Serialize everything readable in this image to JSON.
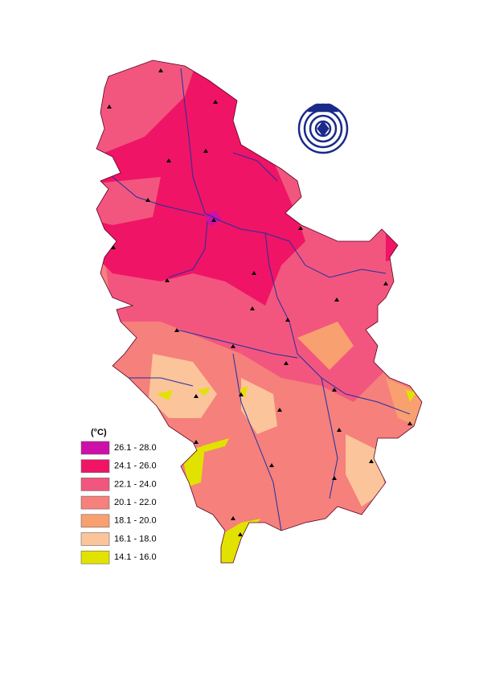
{
  "legend": {
    "title": "(°C)",
    "items": [
      {
        "label": "26.1 - 28.0",
        "color": "#cc10a8"
      },
      {
        "label": "24.1 - 26.0",
        "color": "#ef1466"
      },
      {
        "label": "22.1 - 24.0",
        "color": "#f2567e"
      },
      {
        "label": "20.1 - 22.0",
        "color": "#f5807c"
      },
      {
        "label": "18.1 - 20.0",
        "color": "#f8a070"
      },
      {
        "label": "16.1 - 18.0",
        "color": "#fbc49a"
      },
      {
        "label": "14.1 - 16.0",
        "color": "#e2e200"
      }
    ]
  }
}
